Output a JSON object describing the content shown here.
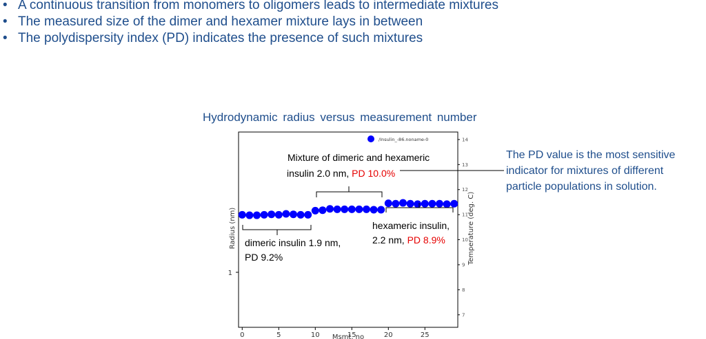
{
  "bullets": [
    "A continuous transition from monomers to oligomers leads to intermediate mixtures",
    "The measured size of the dimer and hexamer mixture lays in between",
    "The polydispersity index (PD) indicates the presence of such mixtures"
  ],
  "bullet_glyph": "•",
  "chart_title": "Hydrodynamic radius versus measurement number",
  "side_note": [
    "The PD value is the most sensitive",
    "indicator for mixtures of different",
    "particle populations in solution."
  ],
  "colors": {
    "text_blue": "#1f4e8c",
    "marker_blue": "#0000ff",
    "pd_red": "#e60000"
  },
  "annotations": {
    "mixture_line1": "Mixture of dimeric and hexameric",
    "mixture_line2_prefix": "insulin 2.0 nm,",
    "mixture_pd": "PD 10.0%",
    "dimeric_line1": "dimeric insulin 1.9 nm,",
    "dimeric_pd": "PD 9.2%",
    "hexameric_line1": "hexameric insulin,",
    "hexameric_line2_prefix": "2.2 nm,",
    "hexameric_pd": "PD 8.9%"
  },
  "chart_data": {
    "type": "scatter",
    "title": "",
    "xlabel": "Msmt. no",
    "ylabel": "Radius (nm)",
    "y2label": "Temperature (deg. C)",
    "y_scale": "log",
    "x_ticks": [
      0,
      5,
      10,
      15,
      20,
      25
    ],
    "xlim": [
      -0.5,
      29.5
    ],
    "y_tick_labels": [
      "1"
    ],
    "y2_ticks": [
      7,
      8,
      9,
      10,
      11,
      12,
      13,
      14
    ],
    "y2lim": [
      6.5,
      14.3
    ],
    "legend": "top-center",
    "series": [
      {
        "name": "/Insulin_-86.noname-0",
        "x": [
          0,
          1,
          2,
          3,
          4,
          5,
          6,
          7,
          8,
          9,
          10,
          11,
          12,
          13,
          14,
          15,
          16,
          17,
          18,
          19,
          20,
          21,
          22,
          23,
          24,
          25,
          26,
          27,
          28,
          29
        ],
        "y": [
          1.9,
          1.89,
          1.89,
          1.9,
          1.91,
          1.9,
          1.92,
          1.91,
          1.9,
          1.9,
          1.99,
          2.0,
          2.03,
          2.02,
          2.02,
          2.02,
          2.02,
          2.02,
          2.01,
          2.01,
          2.16,
          2.15,
          2.17,
          2.15,
          2.14,
          2.15,
          2.15,
          2.15,
          2.14,
          2.15
        ]
      }
    ]
  }
}
